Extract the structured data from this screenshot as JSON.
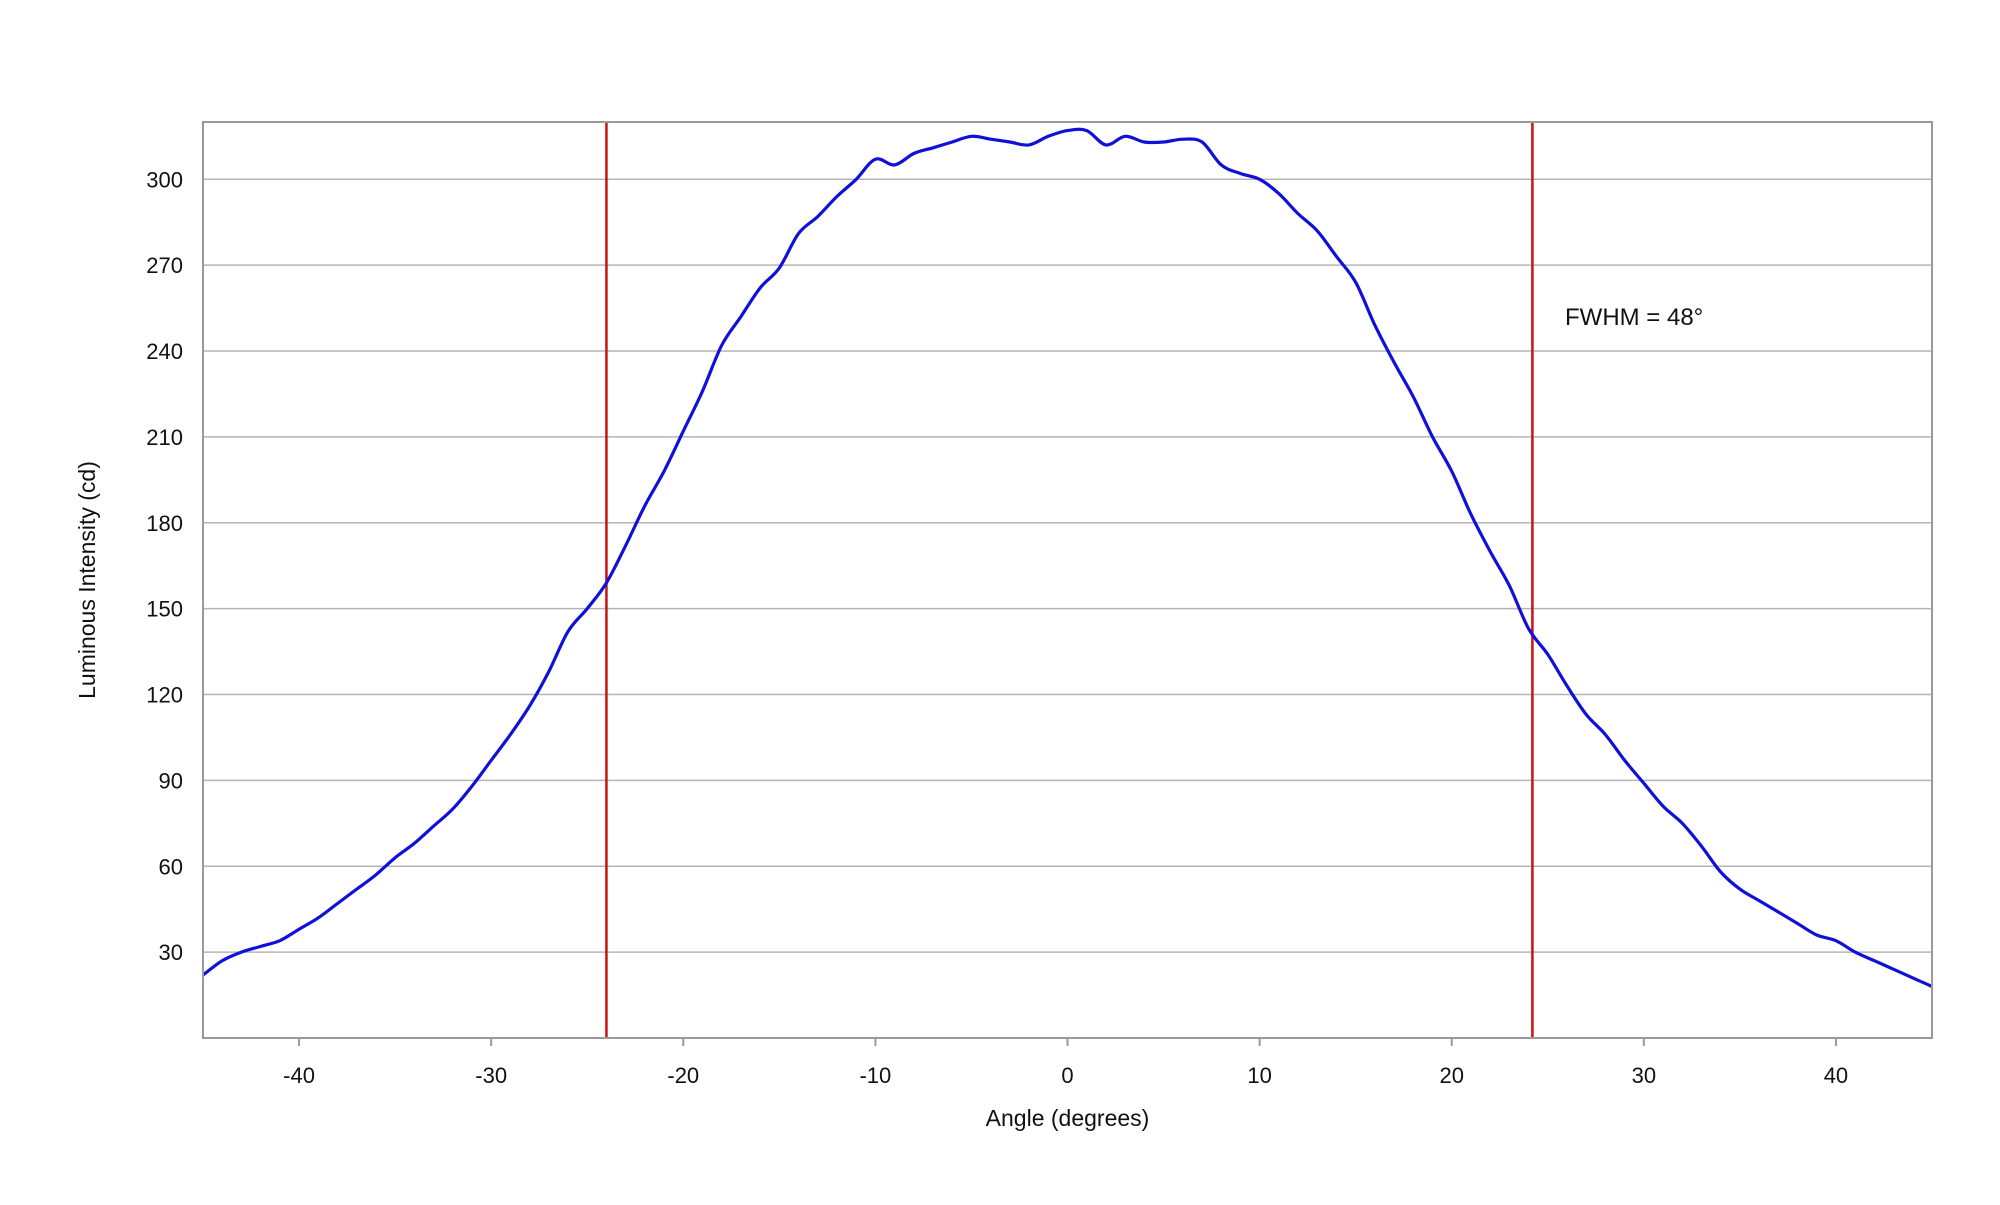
{
  "chart_data": {
    "type": "line",
    "title": "",
    "xlabel": "Angle (degrees)",
    "ylabel": "Luminous Intensity (cd)",
    "xlim": [
      -45,
      45
    ],
    "ylim": [
      0,
      320
    ],
    "x_ticks": [
      -40,
      -30,
      -20,
      -10,
      0,
      10,
      20,
      30,
      40
    ],
    "y_ticks": [
      30,
      60,
      90,
      120,
      150,
      180,
      210,
      240,
      270,
      300
    ],
    "grid": "horizontal",
    "annotation": "FWHM = 48°",
    "reference_lines_x": [
      -24,
      24.2
    ],
    "colors": {
      "series": "#1010d8",
      "reference": "#cc1111",
      "grid": "#b4b4b4",
      "frame": "#9a9a9a"
    },
    "series": [
      {
        "x": [
          -45,
          -44,
          -43,
          -42,
          -41,
          -40,
          -39,
          -38,
          -37,
          -36,
          -35,
          -34,
          -33,
          -32,
          -31,
          -30,
          -29,
          -28,
          -27,
          -26,
          -25,
          -24,
          -23,
          -22,
          -21,
          -20,
          -19,
          -18,
          -17,
          -16,
          -15,
          -14,
          -13,
          -12,
          -11,
          -10,
          -9,
          -8,
          -7,
          -6,
          -5,
          -4,
          -3,
          -2,
          -1,
          0,
          1,
          2,
          3,
          4,
          5,
          6,
          7,
          8,
          9,
          10,
          11,
          12,
          13,
          14,
          15,
          16,
          17,
          18,
          19,
          20,
          21,
          22,
          23,
          24,
          25,
          26,
          27,
          28,
          29,
          30,
          31,
          32,
          33,
          34,
          35,
          36,
          37,
          38,
          39,
          40,
          41,
          42,
          43,
          44,
          45
        ],
        "values": [
          22,
          27,
          30,
          32,
          34,
          38,
          42,
          47,
          52,
          57,
          63,
          68,
          74,
          80,
          88,
          97,
          106,
          116,
          128,
          142,
          150,
          159,
          172,
          186,
          198,
          212,
          226,
          242,
          252,
          262,
          269,
          281,
          287,
          294,
          300,
          307,
          305,
          309,
          311,
          313,
          315,
          314,
          313,
          312,
          315,
          317,
          317,
          312,
          315,
          313,
          313,
          314,
          313,
          305,
          302,
          300,
          295,
          288,
          282,
          273,
          264,
          249,
          236,
          224,
          210,
          198,
          183,
          170,
          158,
          143,
          134,
          123,
          113,
          106,
          97,
          89,
          81,
          75,
          67,
          58,
          52,
          48,
          44,
          40,
          36,
          34,
          30,
          27,
          24,
          21,
          18
        ]
      }
    ]
  }
}
